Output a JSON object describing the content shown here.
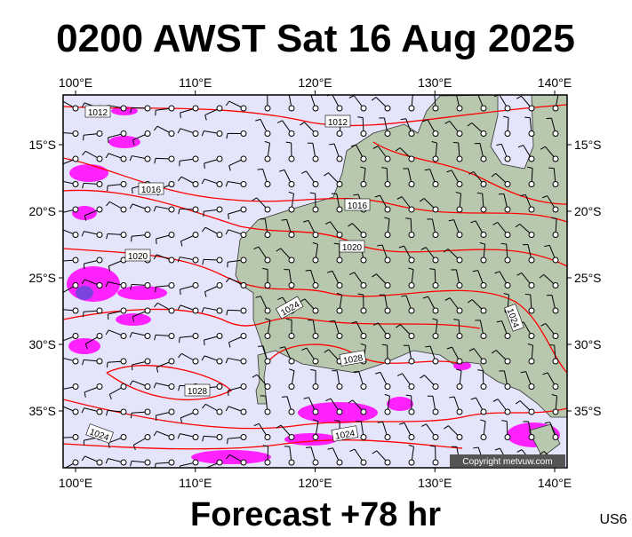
{
  "header": {
    "title": "0200 AWST Sat 16 Aug 2025"
  },
  "map": {
    "lon_ticks": [
      {
        "value": 100,
        "label": "100°E"
      },
      {
        "value": 110,
        "label": "110°E"
      },
      {
        "value": 120,
        "label": "120°E"
      },
      {
        "value": 130,
        "label": "130°E"
      },
      {
        "value": 140,
        "label": "140°E"
      }
    ],
    "lat_ticks": [
      {
        "value": -15,
        "label": "15°S"
      },
      {
        "value": -20,
        "label": "20°S"
      },
      {
        "value": -25,
        "label": "25°S"
      },
      {
        "value": -30,
        "label": "30°S"
      },
      {
        "value": -35,
        "label": "35°S"
      }
    ],
    "isobar_labels": [
      "1012",
      "1012",
      "1016",
      "1016",
      "1020",
      "1020",
      "1024",
      "1024",
      "1028",
      "1028",
      "1024",
      "1024"
    ],
    "copyright": "Copyright metvuw.com"
  },
  "footer": {
    "forecast": "Forecast +78 hr",
    "code": "US6"
  }
}
